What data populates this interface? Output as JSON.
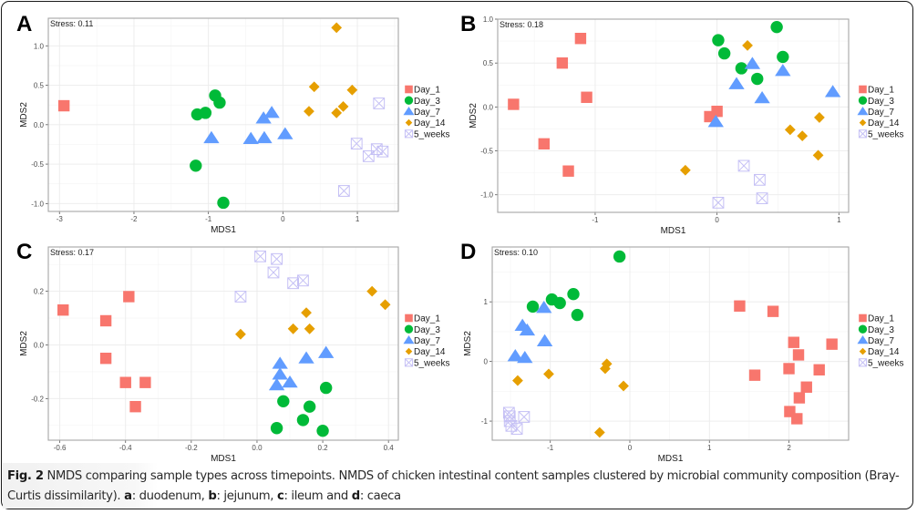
{
  "figure": {
    "caption": {
      "label": "Fig. 2",
      "text1": " NMDS comparing sample types across timepoints. NMDS of chicken intestinal content samples clustered by microbial community composition (Bray-Curtis dissimilarity). ",
      "a": "a",
      "a_text": ": duodenum, ",
      "b": "b",
      "b_text": ": jejunum, ",
      "c": "c",
      "c_text": ": ileum and ",
      "d": "d",
      "d_text": ": caeca"
    }
  },
  "legend": [
    {
      "name": "Day_1",
      "shape": "square",
      "color": "#f8766d"
    },
    {
      "name": "Day_3",
      "shape": "circle",
      "color": "#00ba38"
    },
    {
      "name": "Day_7",
      "shape": "triangle",
      "color": "#619cff"
    },
    {
      "name": "Day_14",
      "shape": "diamond",
      "color": "#e69f00"
    },
    {
      "name": "5_weeks",
      "shape": "square-x",
      "color": "#c5c0f5"
    }
  ],
  "chart_data": [
    {
      "type": "scatter",
      "panel": "A",
      "title": "",
      "annotation": "Stress: 0.11",
      "xlabel": "MDS1",
      "ylabel": "MDS2",
      "xlim": [
        -3.15,
        1.55
      ],
      "ylim": [
        -1.1,
        1.35
      ],
      "xticks": [
        -3,
        -2,
        -1,
        0,
        1
      ],
      "xtick_labels": [
        "-3",
        "-2",
        "-1",
        "0",
        "1"
      ],
      "yticks": [
        -1.0,
        -0.5,
        0.0,
        0.5,
        1.0
      ],
      "ytick_labels": [
        "-1.0",
        "-0.5",
        "0.0",
        "0.5",
        "1.0"
      ],
      "grid": true,
      "legend_position": "right",
      "series": [
        {
          "name": "Day_1",
          "points": [
            [
              -2.94,
              0.24
            ]
          ]
        },
        {
          "name": "Day_3",
          "points": [
            [
              -0.91,
              0.37
            ],
            [
              -0.85,
              0.28
            ],
            [
              -1.15,
              0.13
            ],
            [
              -1.04,
              0.15
            ],
            [
              -1.17,
              -0.52
            ],
            [
              -0.8,
              -0.99
            ]
          ]
        },
        {
          "name": "Day_7",
          "points": [
            [
              -0.96,
              -0.17
            ],
            [
              -0.43,
              -0.18
            ],
            [
              -0.25,
              -0.17
            ],
            [
              -0.26,
              0.08
            ],
            [
              -0.15,
              0.15
            ],
            [
              0.03,
              -0.12
            ]
          ]
        },
        {
          "name": "Day_14",
          "points": [
            [
              0.72,
              1.23
            ],
            [
              0.42,
              0.48
            ],
            [
              0.93,
              0.44
            ],
            [
              0.35,
              0.17
            ],
            [
              0.72,
              0.15
            ],
            [
              0.81,
              0.23
            ]
          ]
        },
        {
          "name": "5_weeks",
          "points": [
            [
              1.29,
              0.27
            ],
            [
              0.99,
              -0.24
            ],
            [
              1.26,
              -0.31
            ],
            [
              1.34,
              -0.34
            ],
            [
              1.15,
              -0.4
            ],
            [
              0.82,
              -0.84
            ]
          ]
        }
      ]
    },
    {
      "type": "scatter",
      "panel": "B",
      "title": "",
      "annotation": "Stress: 0.18",
      "xlabel": "MDS1",
      "ylabel": "MDS2",
      "xlim": [
        -1.8,
        1.08
      ],
      "ylim": [
        -1.2,
        1.0
      ],
      "xticks": [
        -1,
        0,
        1
      ],
      "xtick_labels": [
        "-1",
        "0",
        "1"
      ],
      "yticks": [
        -1.0,
        -0.5,
        0.0,
        0.5,
        1.0
      ],
      "ytick_labels": [
        "-1.0",
        "-0.5",
        "0.0",
        "0.5",
        "1.0"
      ],
      "grid": true,
      "legend_position": "right",
      "series": [
        {
          "name": "Day_1",
          "points": [
            [
              -1.12,
              0.78
            ],
            [
              -1.27,
              0.5
            ],
            [
              -1.07,
              0.11
            ],
            [
              -1.67,
              0.03
            ],
            [
              -1.42,
              -0.42
            ],
            [
              -1.22,
              -0.73
            ],
            [
              -0.06,
              -0.11
            ],
            [
              0.0,
              -0.05
            ]
          ]
        },
        {
          "name": "Day_3",
          "points": [
            [
              0.01,
              0.76
            ],
            [
              0.49,
              0.91
            ],
            [
              0.06,
              0.61
            ],
            [
              0.54,
              0.57
            ],
            [
              0.2,
              0.44
            ],
            [
              0.33,
              0.32
            ]
          ]
        },
        {
          "name": "Day_7",
          "points": [
            [
              0.29,
              0.49
            ],
            [
              0.54,
              0.41
            ],
            [
              0.16,
              0.26
            ],
            [
              0.37,
              0.1
            ],
            [
              0.95,
              0.17
            ],
            [
              -0.01,
              -0.17
            ]
          ]
        },
        {
          "name": "Day_14",
          "points": [
            [
              0.25,
              0.7
            ],
            [
              0.84,
              -0.12
            ],
            [
              0.6,
              -0.26
            ],
            [
              0.7,
              -0.33
            ],
            [
              0.83,
              -0.55
            ],
            [
              -0.26,
              -0.72
            ]
          ]
        },
        {
          "name": "5_weeks",
          "points": [
            [
              0.22,
              -0.67
            ],
            [
              0.35,
              -0.83
            ],
            [
              0.37,
              -1.04
            ],
            [
              0.01,
              -1.09
            ]
          ]
        }
      ]
    },
    {
      "type": "scatter",
      "panel": "C",
      "title": "",
      "annotation": "Stress: 0.17",
      "xlabel": "MDS1",
      "ylabel": "MDS2",
      "xlim": [
        -0.635,
        0.43
      ],
      "ylim": [
        -0.355,
        0.365
      ],
      "xticks": [
        -0.6,
        -0.4,
        -0.2,
        0.0,
        0.2,
        0.4
      ],
      "xtick_labels": [
        "-0.6",
        "-0.4",
        "-0.2",
        "0.0",
        "0.2",
        "0.4"
      ],
      "yticks": [
        -0.2,
        0.0,
        0.2
      ],
      "ytick_labels": [
        "-0.2",
        "0.0",
        "0.2"
      ],
      "grid": true,
      "legend_position": "right",
      "series": [
        {
          "name": "Day_1",
          "points": [
            [
              -0.59,
              0.13
            ],
            [
              -0.39,
              0.18
            ],
            [
              -0.46,
              0.09
            ],
            [
              -0.46,
              -0.05
            ],
            [
              -0.4,
              -0.14
            ],
            [
              -0.34,
              -0.14
            ],
            [
              -0.37,
              -0.23
            ]
          ]
        },
        {
          "name": "Day_3",
          "points": [
            [
              0.21,
              -0.16
            ],
            [
              0.08,
              -0.21
            ],
            [
              0.16,
              -0.23
            ],
            [
              0.14,
              -0.28
            ],
            [
              0.06,
              -0.31
            ],
            [
              0.2,
              -0.32
            ]
          ]
        },
        {
          "name": "Day_7",
          "points": [
            [
              0.21,
              -0.03
            ],
            [
              0.15,
              -0.05
            ],
            [
              0.07,
              -0.07
            ],
            [
              0.07,
              -0.11
            ],
            [
              0.1,
              -0.14
            ],
            [
              0.06,
              -0.15
            ]
          ]
        },
        {
          "name": "Day_14",
          "points": [
            [
              0.35,
              0.2
            ],
            [
              0.39,
              0.15
            ],
            [
              0.15,
              0.12
            ],
            [
              0.11,
              0.06
            ],
            [
              0.16,
              0.06
            ],
            [
              -0.05,
              0.04
            ]
          ]
        },
        {
          "name": "5_weeks",
          "points": [
            [
              0.01,
              0.33
            ],
            [
              0.06,
              0.32
            ],
            [
              0.05,
              0.27
            ],
            [
              0.14,
              0.24
            ],
            [
              0.11,
              0.23
            ],
            [
              -0.05,
              0.18
            ]
          ]
        }
      ]
    },
    {
      "type": "scatter",
      "panel": "D",
      "title": "",
      "annotation": "Stress: 0.10",
      "xlabel": "MDS1",
      "ylabel": "MDS2",
      "xlim": [
        -1.73,
        2.75
      ],
      "ylim": [
        -1.32,
        1.92
      ],
      "xticks": [
        -1,
        0,
        1,
        2
      ],
      "xtick_labels": [
        "-1",
        "0",
        "1",
        "2"
      ],
      "yticks": [
        -1,
        0,
        1
      ],
      "ytick_labels": [
        "-1",
        "0",
        "1"
      ],
      "grid": true,
      "legend_position": "right",
      "series": [
        {
          "name": "Day_1",
          "points": [
            [
              1.38,
              0.93
            ],
            [
              1.8,
              0.84
            ],
            [
              2.06,
              0.32
            ],
            [
              2.54,
              0.29
            ],
            [
              2.12,
              0.11
            ],
            [
              2.0,
              -0.12
            ],
            [
              2.38,
              -0.14
            ],
            [
              1.57,
              -0.23
            ],
            [
              2.22,
              -0.43
            ],
            [
              2.13,
              -0.61
            ],
            [
              2.01,
              -0.84
            ],
            [
              2.1,
              -0.96
            ]
          ]
        },
        {
          "name": "Day_3",
          "points": [
            [
              -0.13,
              1.76
            ],
            [
              -0.71,
              1.13
            ],
            [
              -0.98,
              1.04
            ],
            [
              -0.88,
              0.98
            ],
            [
              -1.22,
              0.92
            ],
            [
              -0.66,
              0.78
            ]
          ]
        },
        {
          "name": "Day_7",
          "points": [
            [
              -1.08,
              0.9
            ],
            [
              -1.35,
              0.6
            ],
            [
              -1.29,
              0.52
            ],
            [
              -1.07,
              0.34
            ],
            [
              -1.44,
              0.09
            ],
            [
              -1.32,
              0.06
            ]
          ]
        },
        {
          "name": "Day_14",
          "points": [
            [
              -0.29,
              -0.04
            ],
            [
              -0.31,
              -0.12
            ],
            [
              -1.02,
              -0.21
            ],
            [
              -1.41,
              -0.32
            ],
            [
              -0.08,
              -0.41
            ],
            [
              -0.38,
              -1.19
            ]
          ]
        },
        {
          "name": "5_weeks",
          "points": [
            [
              -1.52,
              -0.86
            ],
            [
              -1.51,
              -0.92
            ],
            [
              -1.33,
              -0.93
            ],
            [
              -1.51,
              -1.0
            ],
            [
              -1.49,
              -1.08
            ],
            [
              -1.42,
              -1.13
            ]
          ]
        }
      ]
    }
  ]
}
